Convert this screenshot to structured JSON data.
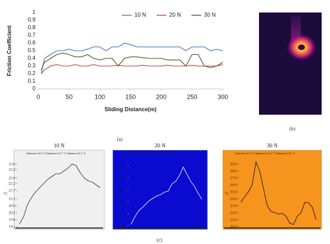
{
  "panel_labels": [
    "(a)",
    "(b)",
    "(c)"
  ],
  "chart_data": [
    {
      "type": "line",
      "ylabel": "Friction Coefficient",
      "xlabel": "Sliding Distance(m)",
      "x": [
        5,
        10,
        20,
        30,
        40,
        50,
        60,
        70,
        80,
        90,
        100,
        110,
        120,
        130,
        140,
        150,
        160,
        170,
        180,
        190,
        200,
        210,
        220,
        230,
        240,
        250,
        260,
        270,
        280,
        290,
        300
      ],
      "series": [
        {
          "name": "10 N",
          "color": "#4a7ebb",
          "values": [
            0.2,
            0.4,
            0.45,
            0.5,
            0.5,
            0.52,
            0.5,
            0.5,
            0.52,
            0.55,
            0.55,
            0.5,
            0.55,
            0.55,
            0.6,
            0.58,
            0.55,
            0.55,
            0.55,
            0.55,
            0.55,
            0.55,
            0.55,
            0.55,
            0.5,
            0.55,
            0.55,
            0.55,
            0.5,
            0.52,
            0.5
          ]
        },
        {
          "name": "20 N",
          "color": "#be4b48",
          "values": [
            0.2,
            0.25,
            0.3,
            0.32,
            0.3,
            0.3,
            0.32,
            0.3,
            0.3,
            0.32,
            0.3,
            0.3,
            0.3,
            0.31,
            0.3,
            0.3,
            0.3,
            0.31,
            0.3,
            0.3,
            0.3,
            0.31,
            0.3,
            0.3,
            0.3,
            0.31,
            0.3,
            0.3,
            0.3,
            0.3,
            0.32
          ]
        },
        {
          "name": "30 N",
          "color": "#4f6228",
          "values": [
            0.25,
            0.35,
            0.4,
            0.45,
            0.47,
            0.45,
            0.42,
            0.42,
            0.45,
            0.4,
            0.38,
            0.4,
            0.4,
            0.3,
            0.4,
            0.42,
            0.42,
            0.41,
            0.4,
            0.4,
            0.4,
            0.38,
            0.38,
            0.38,
            0.3,
            0.45,
            0.45,
            0.3,
            0.28,
            0.3,
            0.35
          ]
        }
      ],
      "xlim": [
        0,
        300
      ],
      "xticks": [
        0,
        50,
        100,
        150,
        200,
        250,
        300
      ],
      "ylim": [
        0,
        1
      ],
      "yticks": [
        0,
        0.1,
        0.2,
        0.3,
        0.4,
        0.5,
        0.6,
        0.7,
        0.8,
        0.9,
        1
      ],
      "grid": false,
      "legend": "top"
    },
    {
      "type": "line",
      "title": "10 N",
      "subtitle": "Minimum 19.2 °C Maximum 23.7 °C Distance 22.2 °C",
      "ylabel": "°C",
      "color": "#333333",
      "background": "#f0f0f0",
      "values": [
        19.3,
        19.8,
        20.7,
        21.2,
        21.6,
        21.9,
        22.2,
        22.5,
        22.7,
        22.9,
        22.9,
        23.1,
        23.3,
        23.6,
        23.5,
        23.0,
        22.6,
        22.4,
        22.3,
        22.1,
        21.9
      ],
      "ylim": [
        19.0,
        23.9
      ],
      "yticks": [
        19.1,
        19.6,
        20.1,
        20.6,
        21.1,
        21.7,
        22.2,
        22.6,
        23.2,
        23.6
      ]
    },
    {
      "type": "line",
      "title": "20 N",
      "subtitle": "Minimum 20.1 °C Maximum 25.1 °C Distance 22.5 °C",
      "ylabel": "°C",
      "color": "#ffffff",
      "background": "#0a0ad0",
      "values": [
        20.2,
        20.8,
        21.3,
        21.6,
        21.9,
        22.2,
        22.4,
        22.6,
        22.7,
        22.9,
        23.0,
        23.6,
        23.8,
        24.3,
        25.0,
        24.4,
        23.8,
        23.4,
        22.8,
        22.3
      ],
      "ylim": [
        19.9,
        25.6
      ],
      "yticks": [
        20.1,
        21.1,
        22.1,
        23.1,
        24.1,
        25.1
      ]
    },
    {
      "type": "line",
      "title": "30 N",
      "subtitle": "Minimum 20.0 °C Maximum 29.3 °C Distance 22.8 °C",
      "ylabel": "°C",
      "color": "#111111",
      "background": "#f7941d",
      "values": [
        23.5,
        24.3,
        25.0,
        26.0,
        29.3,
        28.0,
        25.5,
        23.0,
        22.2,
        22.0,
        21.8,
        21.9,
        21.5,
        20.5,
        20.3,
        21.5,
        22.0,
        23.5,
        23.4,
        22.8,
        21.0
      ],
      "ylim": [
        19.8,
        29.6
      ],
      "yticks": [
        {
          "value": 20,
          "label": "20.0"
        },
        {
          "value": 21,
          "label": "21.0"
        },
        {
          "value": 22,
          "label": "22.0"
        },
        {
          "value": 23,
          "label": "23.0"
        },
        {
          "value": 24,
          "label": "24.0"
        },
        {
          "value": 25,
          "label": "25.0"
        },
        {
          "value": 26,
          "label": "26.0"
        },
        {
          "value": 27,
          "label": "27.0"
        },
        {
          "value": 28,
          "label": "28.0"
        },
        {
          "value": 29,
          "label": "29.0"
        }
      ]
    }
  ]
}
